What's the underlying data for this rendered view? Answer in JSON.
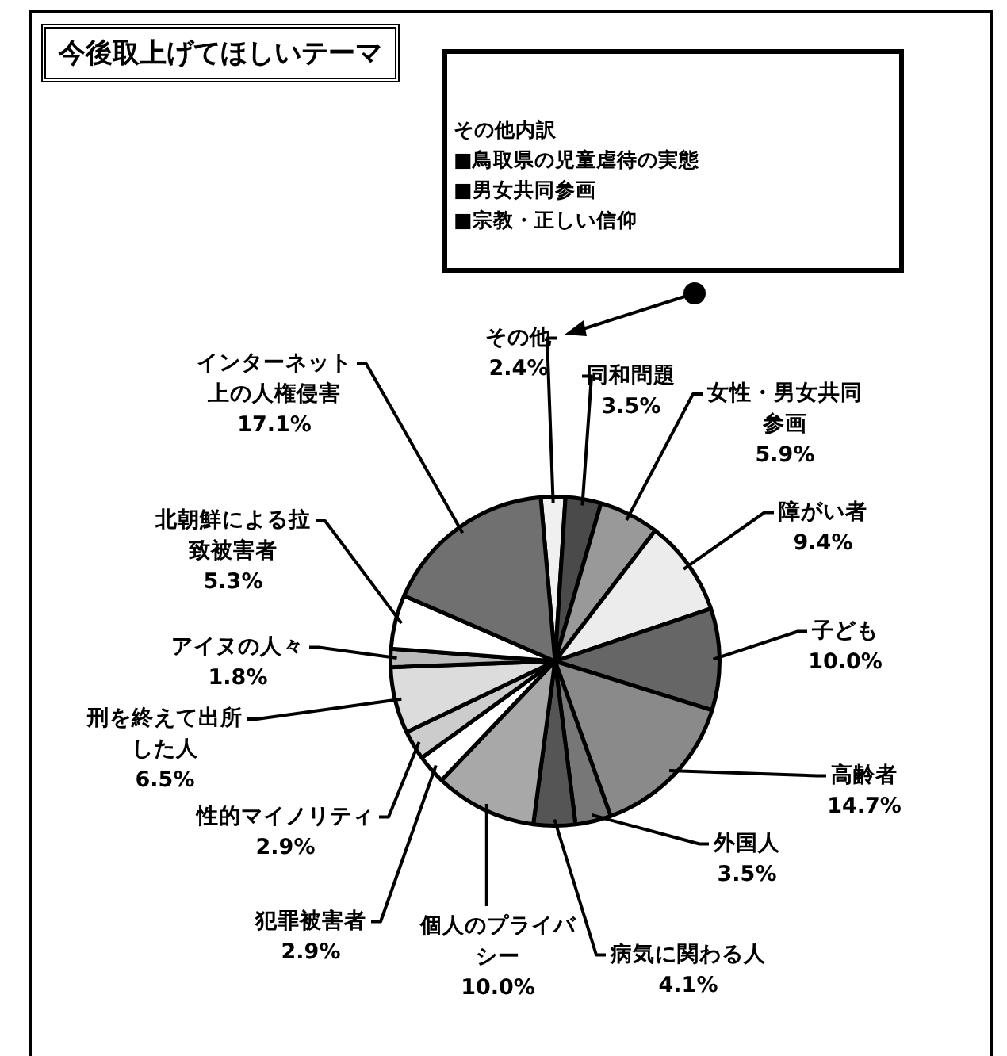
{
  "chart_data": {
    "type": "pie",
    "title": "今後取上げてほしいテーマ",
    "categories": [
      "その他",
      "同和問題",
      "女性・男女共同参画",
      "障がい者",
      "子ども",
      "高齢者",
      "外国人",
      "病気に関わる人",
      "個人のプライバシー",
      "犯罪被害者",
      "性的マイノリティ",
      "刑を終えて出所した人",
      "アイヌの人々",
      "北朝鮮による拉致被害者",
      "インターネット上の人権侵害"
    ],
    "values": [
      2.4,
      3.5,
      5.9,
      9.4,
      10,
      14.7,
      3.5,
      4.1,
      10,
      2.9,
      2.9,
      6.5,
      1.8,
      5.3,
      17.1
    ],
    "value_labels": [
      "2.4%",
      "3.5%",
      "5.9%",
      "9.4%",
      "10.0%",
      "14.7%",
      "3.5%",
      "4.1%",
      "10.0%",
      "2.9%",
      "2.9%",
      "6.5%",
      "1.8%",
      "5.3%",
      "17.1%"
    ],
    "colors": [
      "#f0f0f0",
      "#4a4a4a",
      "#999999",
      "#ececec",
      "#666666",
      "#8a8a8a",
      "#777777",
      "#555555",
      "#a8a8a8",
      "#ffffff",
      "#cccccc",
      "#dcdcdc",
      "#bbbbbb",
      "#ffffff",
      "#707070"
    ],
    "annotations": [
      "その他内訳",
      "■鳥取県の児童虐待の実態",
      "■男女共同参画",
      "■宗教・正しい信仰"
    ]
  }
}
